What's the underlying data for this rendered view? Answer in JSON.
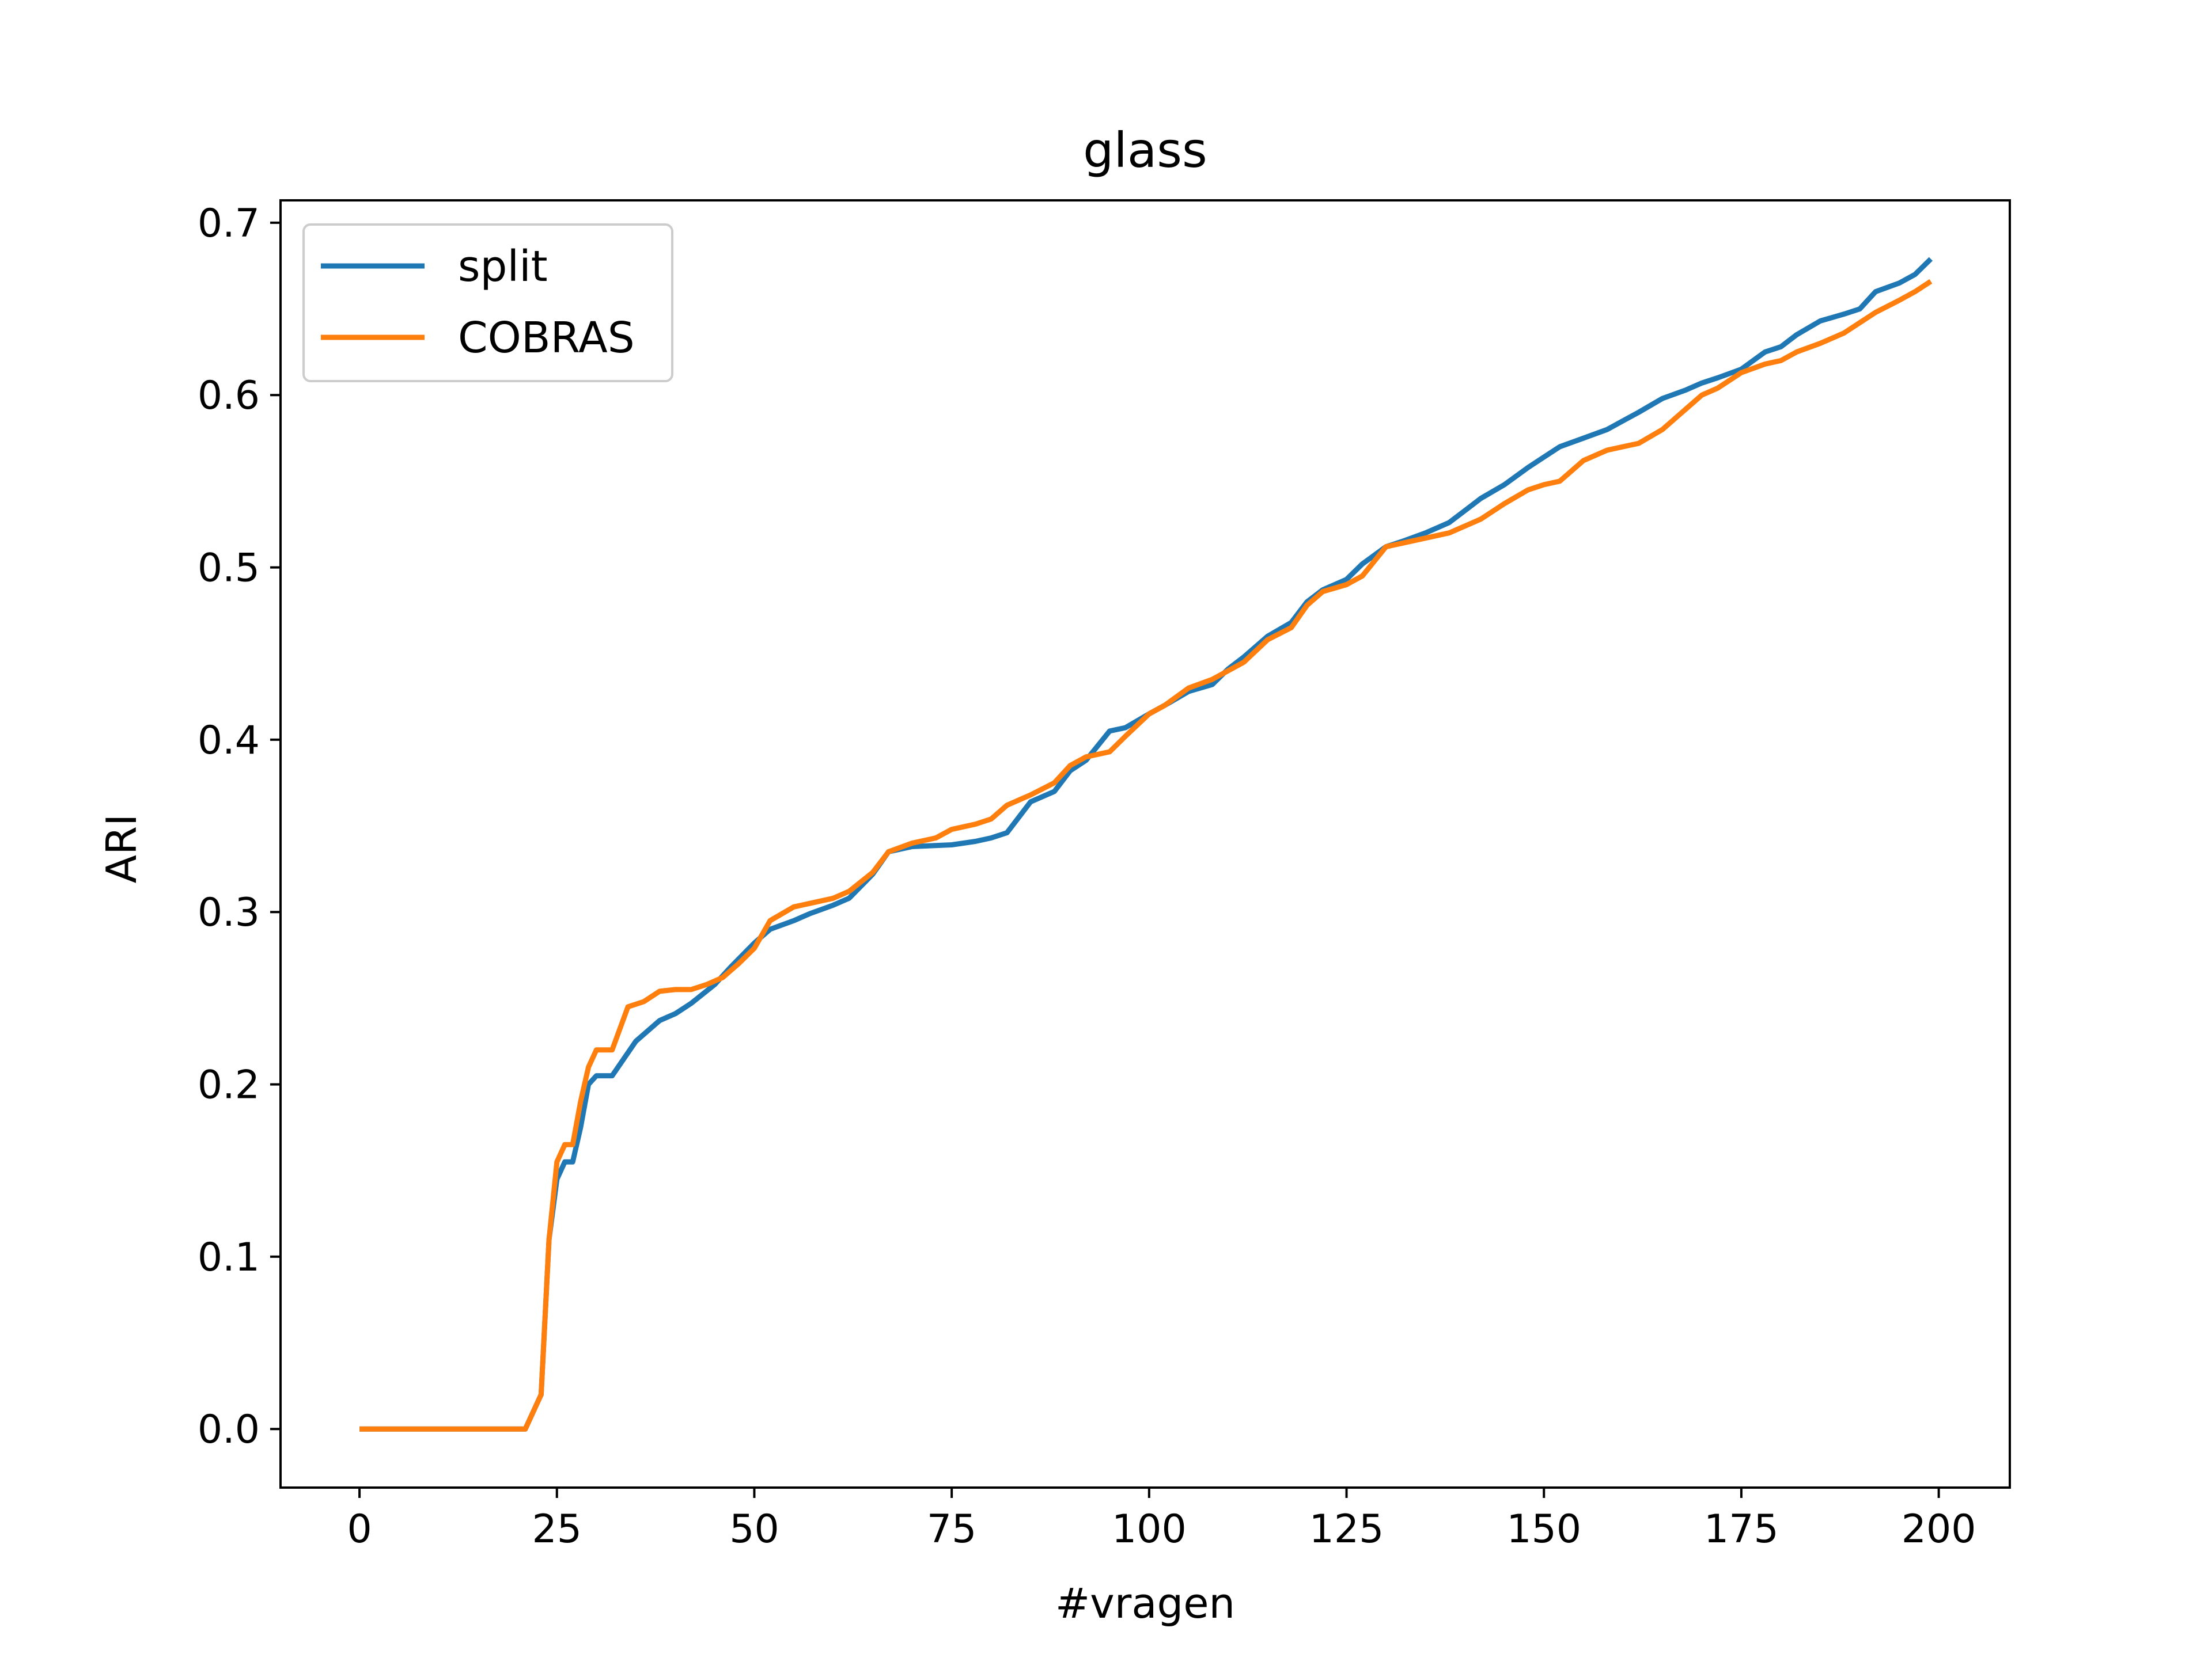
{
  "chart_data": {
    "type": "line",
    "title": "glass",
    "xlabel": "#vragen",
    "ylabel": "ARI",
    "xlim": [
      -10,
      209
    ],
    "ylim": [
      -0.034,
      0.713
    ],
    "xticks": [
      0,
      25,
      50,
      75,
      100,
      125,
      150,
      175,
      200
    ],
    "yticks": [
      0.0,
      0.1,
      0.2,
      0.3,
      0.4,
      0.5,
      0.6,
      0.7
    ],
    "ytick_labels": [
      "0.0",
      "0.1",
      "0.2",
      "0.3",
      "0.4",
      "0.5",
      "0.6",
      "0.7"
    ],
    "grid": false,
    "legend_position": "upper-left",
    "series": [
      {
        "name": "split",
        "color": "#1f77b4",
        "x": [
          0,
          5,
          10,
          15,
          21,
          23,
          24,
          25,
          26,
          27,
          28,
          29,
          30,
          32,
          35,
          38,
          40,
          42,
          45,
          47,
          50,
          52,
          55,
          57,
          60,
          62,
          65,
          67,
          70,
          75,
          78,
          80,
          82,
          85,
          88,
          90,
          92,
          95,
          97,
          100,
          102,
          105,
          108,
          110,
          112,
          115,
          118,
          120,
          122,
          125,
          127,
          130,
          132,
          135,
          138,
          140,
          142,
          145,
          148,
          150,
          152,
          155,
          158,
          160,
          162,
          165,
          168,
          170,
          172,
          175,
          178,
          180,
          182,
          185,
          188,
          190,
          192,
          195,
          197,
          199
        ],
        "y": [
          0.0,
          0.0,
          0.0,
          0.0,
          0.0,
          0.02,
          0.11,
          0.145,
          0.155,
          0.155,
          0.175,
          0.2,
          0.205,
          0.205,
          0.225,
          0.237,
          0.241,
          0.247,
          0.258,
          0.268,
          0.282,
          0.29,
          0.295,
          0.299,
          0.304,
          0.308,
          0.322,
          0.335,
          0.338,
          0.339,
          0.341,
          0.343,
          0.346,
          0.364,
          0.37,
          0.382,
          0.388,
          0.405,
          0.407,
          0.415,
          0.42,
          0.428,
          0.432,
          0.441,
          0.448,
          0.46,
          0.468,
          0.48,
          0.487,
          0.493,
          0.502,
          0.512,
          0.515,
          0.52,
          0.526,
          0.533,
          0.54,
          0.548,
          0.558,
          0.564,
          0.57,
          0.575,
          0.58,
          0.585,
          0.59,
          0.598,
          0.603,
          0.607,
          0.61,
          0.615,
          0.625,
          0.628,
          0.635,
          0.643,
          0.647,
          0.65,
          0.66,
          0.665,
          0.67,
          0.679
        ]
      },
      {
        "name": "COBRAS",
        "color": "#ff7f0e",
        "x": [
          0,
          5,
          10,
          15,
          21,
          23,
          24,
          25,
          26,
          27,
          28,
          29,
          30,
          32,
          34,
          36,
          38,
          40,
          42,
          44,
          46,
          48,
          50,
          52,
          55,
          57,
          60,
          62,
          65,
          67,
          70,
          73,
          75,
          78,
          80,
          82,
          85,
          88,
          90,
          92,
          95,
          97,
          100,
          102,
          105,
          108,
          110,
          112,
          115,
          118,
          120,
          122,
          125,
          127,
          130,
          132,
          135,
          138,
          140,
          142,
          145,
          148,
          150,
          152,
          155,
          158,
          160,
          162,
          165,
          168,
          170,
          172,
          175,
          178,
          180,
          182,
          185,
          188,
          190,
          192,
          195,
          197,
          199
        ],
        "y": [
          0.0,
          0.0,
          0.0,
          0.0,
          0.0,
          0.02,
          0.11,
          0.155,
          0.165,
          0.165,
          0.19,
          0.21,
          0.22,
          0.22,
          0.245,
          0.248,
          0.254,
          0.255,
          0.255,
          0.258,
          0.262,
          0.27,
          0.279,
          0.295,
          0.303,
          0.305,
          0.308,
          0.312,
          0.323,
          0.335,
          0.34,
          0.343,
          0.348,
          0.351,
          0.354,
          0.362,
          0.368,
          0.375,
          0.385,
          0.39,
          0.393,
          0.402,
          0.415,
          0.42,
          0.43,
          0.435,
          0.44,
          0.445,
          0.458,
          0.465,
          0.478,
          0.486,
          0.49,
          0.495,
          0.512,
          0.514,
          0.517,
          0.52,
          0.524,
          0.528,
          0.537,
          0.545,
          0.548,
          0.55,
          0.562,
          0.568,
          0.57,
          0.572,
          0.58,
          0.592,
          0.6,
          0.604,
          0.613,
          0.618,
          0.62,
          0.625,
          0.63,
          0.636,
          0.642,
          0.648,
          0.655,
          0.66,
          0.666
        ]
      }
    ]
  }
}
